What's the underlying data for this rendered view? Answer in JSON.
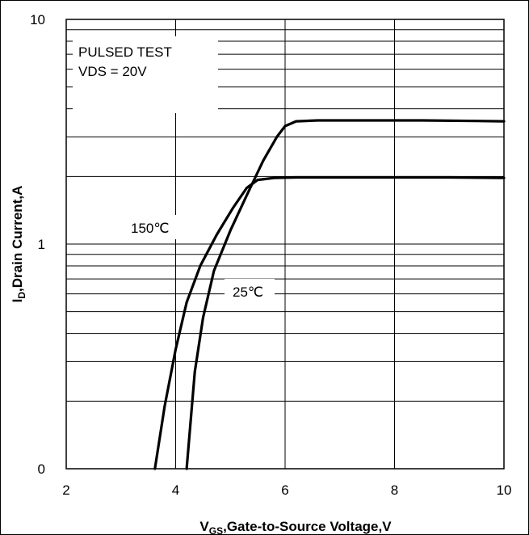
{
  "chart_data": {
    "type": "line",
    "xlabel_main": "V",
    "xlabel_sub": "GS",
    "xlabel_rest": ",Gate-to-Source Voltage,V",
    "ylabel_main": "I",
    "ylabel_sub": "D",
    "ylabel_rest": ",Drain Current,A",
    "xlim": [
      2,
      10
    ],
    "ylim": [
      0.1,
      10
    ],
    "y_scale": "log",
    "x_ticks": [
      "2",
      "4",
      "6",
      "8",
      "10"
    ],
    "y_ticks": [
      {
        "label": "10",
        "value": 10
      },
      {
        "label": "1",
        "value": 1
      },
      {
        "label": "0",
        "value": 0.1
      }
    ],
    "grid": true,
    "annotations": [
      "PULSED TEST",
      "VDS = 20V"
    ],
    "series": [
      {
        "name": "150℃",
        "color": "#000000",
        "x": [
          3.62,
          3.8,
          4.0,
          4.2,
          4.45,
          4.75,
          5.05,
          5.3,
          5.5,
          5.8,
          6.2,
          7.0,
          8.0,
          9.0,
          10.0
        ],
        "y": [
          0.1,
          0.19,
          0.34,
          0.55,
          0.8,
          1.1,
          1.45,
          1.78,
          1.93,
          1.97,
          1.98,
          1.98,
          1.98,
          1.98,
          1.97
        ]
      },
      {
        "name": "25℃",
        "color": "#000000",
        "x": [
          4.2,
          4.35,
          4.5,
          4.7,
          5.0,
          5.3,
          5.6,
          5.85,
          6.0,
          6.2,
          6.6,
          7.5,
          8.5,
          9.5,
          10.0
        ],
        "y": [
          0.1,
          0.27,
          0.47,
          0.76,
          1.15,
          1.65,
          2.35,
          3.0,
          3.35,
          3.52,
          3.55,
          3.55,
          3.55,
          3.53,
          3.52
        ]
      }
    ]
  }
}
